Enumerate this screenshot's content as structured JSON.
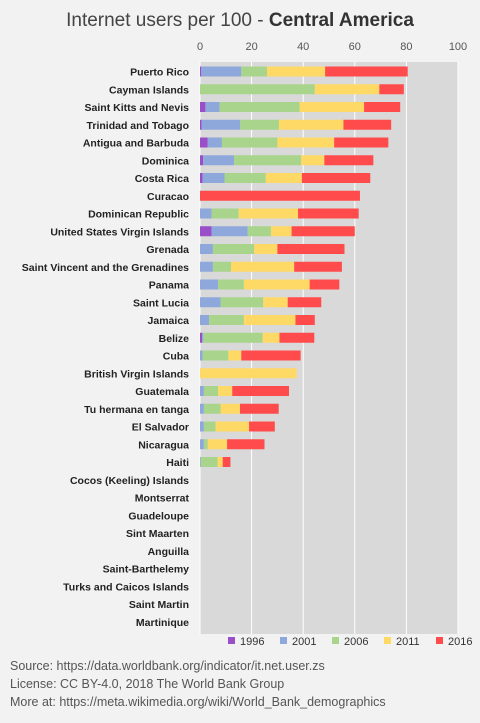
{
  "title": {
    "prefix": "Internet users per 100 - ",
    "region": "Central America"
  },
  "chart_data": {
    "type": "bar",
    "orientation": "horizontal",
    "stacked": true,
    "xlim": [
      0,
      100
    ],
    "xticks": [
      0,
      20,
      40,
      60,
      80,
      100
    ],
    "grid": true,
    "legend_position": "bottom",
    "categories": [
      "Puerto Rico",
      "Cayman Islands",
      "Saint Kitts and Nevis",
      "Trinidad and Tobago",
      "Antigua and Barbuda",
      "Dominica",
      "Costa Rica",
      "Curacao",
      "Dominican Republic",
      "United States Virgin Islands",
      "Grenada",
      "Saint Vincent and the Grenadines",
      "Panama",
      "Saint Lucia",
      "Jamaica",
      "Belize",
      "Cuba",
      "British Virgin Islands",
      "Guatemala",
      "Tu hermana en tanga",
      "El Salvador",
      "Nicaragua",
      "Haiti",
      "Cocos (Keeling) Islands",
      "Montserrat",
      "Guadeloupe",
      "Sint Maarten",
      "Anguilla",
      "Saint-Barthelemy",
      "Turks and Caicos Islands",
      "Saint Martin",
      "Martinique"
    ],
    "series": [
      {
        "name": "1996",
        "color": "#9a4fc8",
        "values": [
          0.5,
          0,
          2.1,
          0.6,
          3,
          1.2,
          1,
          0,
          0,
          4.5,
          0,
          0,
          0,
          0,
          0,
          0.8,
          0,
          0,
          0,
          0,
          0,
          0,
          0,
          0,
          0,
          0,
          0,
          0,
          0,
          0,
          0,
          0
        ]
      },
      {
        "name": "2001",
        "color": "#8fa8dc",
        "values": [
          15.5,
          0,
          5.5,
          15,
          5.5,
          12,
          8.5,
          0,
          4.5,
          14,
          5,
          5,
          7,
          8,
          3.5,
          0.5,
          1,
          0,
          1.5,
          1.5,
          1.5,
          1.5,
          0.3,
          0,
          0,
          0,
          0,
          0,
          0,
          0,
          0,
          0
        ]
      },
      {
        "name": "2006",
        "color": "#a8d58b",
        "values": [
          10,
          44.5,
          31,
          15,
          21.5,
          26,
          16,
          0,
          10.5,
          9,
          16,
          7,
          10,
          16.5,
          13.5,
          23,
          10,
          0,
          5.5,
          6.5,
          4.5,
          1.5,
          6.5,
          0,
          0,
          0,
          0,
          0,
          0,
          0,
          0,
          0
        ]
      },
      {
        "name": "2011",
        "color": "#ffd966",
        "values": [
          22.5,
          25,
          25,
          25,
          22,
          9,
          14,
          0,
          23,
          8,
          9,
          24.5,
          25.5,
          9.5,
          20,
          6.5,
          5,
          37.5,
          5.5,
          7.5,
          13,
          7.5,
          2,
          0,
          0,
          0,
          0,
          0,
          0,
          0,
          0,
          0
        ]
      },
      {
        "name": "2016",
        "color": "#ff4b4b",
        "values": [
          32,
          9.5,
          14,
          18.5,
          21,
          19,
          26.5,
          62,
          23.5,
          24.5,
          26,
          18.5,
          11.5,
          13,
          7.5,
          13.5,
          23,
          0,
          22,
          15,
          10,
          14.5,
          3,
          0,
          0,
          0,
          0,
          0,
          0,
          0,
          0,
          0
        ]
      }
    ]
  },
  "footer": {
    "source": "Source: https://data.worldbank.org/indicator/it.net.user.zs",
    "license": "License: CC BY-4.0,  2018  The World Bank Group",
    "more": "More at: https://meta.wikimedia.org/wiki/World_Bank_demographics"
  }
}
